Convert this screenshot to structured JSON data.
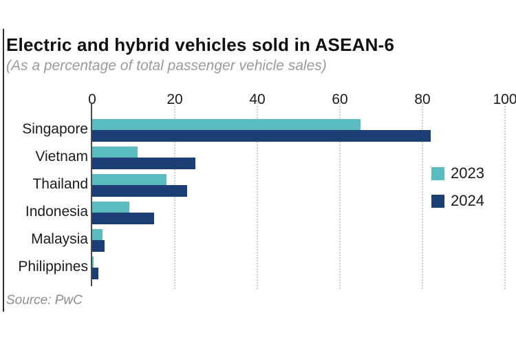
{
  "title": "Electric and hybrid vehicles sold in ASEAN-6",
  "subtitle": "(As a percentage of total passenger vehicle sales)",
  "source": "Source: PwC",
  "colors": {
    "series_2023": "#5abcbe",
    "series_2024": "#1b3e74",
    "gridline": "#cccccc",
    "axis_line": "#4a4a4a",
    "title_text": "#101010",
    "subtitle_text": "#9a9a9a",
    "source_text": "#8e8e8e"
  },
  "chart_data": {
    "type": "bar",
    "orientation": "horizontal",
    "title": "Electric and hybrid vehicles sold in ASEAN-6",
    "subtitle": "(As a percentage of total passenger vehicle sales)",
    "xlabel": "",
    "ylabel": "",
    "xlim": [
      0,
      100
    ],
    "xticks": [
      0,
      20,
      40,
      60,
      80,
      100
    ],
    "grid": "dotted-vertical",
    "legend_position": "right",
    "categories": [
      "Singapore",
      "Vietnam",
      "Thailand",
      "Indonesia",
      "Malaysia",
      "Philippines"
    ],
    "series": [
      {
        "name": "2023",
        "color": "#5abcbe",
        "values": [
          65,
          11,
          18,
          9,
          2.5,
          0.3
        ]
      },
      {
        "name": "2024",
        "color": "#1b3e74",
        "values": [
          82,
          25,
          23,
          15,
          3,
          1.5
        ]
      }
    ]
  }
}
